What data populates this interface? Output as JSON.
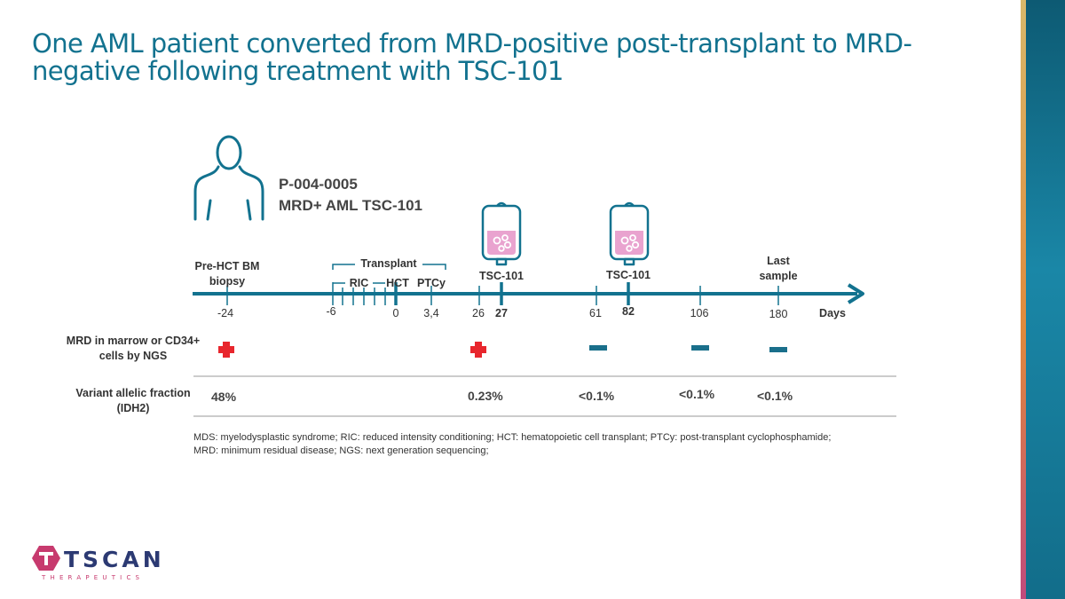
{
  "title": "One AML patient converted from MRD-positive post-transplant to MRD-negative following treatment with TSC-101",
  "patient": {
    "id": "P-004-0005",
    "description": "MRD+ AML TSC-101",
    "icon": "person-outline-icon"
  },
  "timeline": {
    "axis_unit_label": "Days",
    "events": {
      "pre_hct": "Pre-HCT BM biopsy",
      "transplant_group": "Transplant",
      "ric": "RIC",
      "hct": "HCT",
      "ptcy": "PTCy",
      "infusion_1": "TSC-101",
      "infusion_2": "TSC-101",
      "last_sample": "Last sample"
    },
    "day_labels": {
      "d_neg24": "-24",
      "d_neg6": "-6",
      "d0": "0",
      "d34": "3,4",
      "d26": "26",
      "d27": "27",
      "d61": "61",
      "d82": "82",
      "d106": "106",
      "d180": "180"
    },
    "infusion_icon": "iv-bag-icon"
  },
  "mrd_row": {
    "label": "MRD in marrow or CD34+ cells by NGS",
    "results": [
      "positive",
      "positive",
      "negative",
      "negative",
      "negative"
    ]
  },
  "vaf_row": {
    "label": "Variant allelic fraction (IDH2)",
    "values": [
      "48%",
      "0.23%",
      "<0.1%",
      "<0.1%",
      "<0.1%"
    ]
  },
  "footnote": {
    "line1": "MDS: myelodysplastic syndrome; RIC: reduced intensity conditioning; HCT: hematopoietic cell transplant; PTCy: post-transplant cyclophosphamide;",
    "line2": "MRD: minimum residual disease; NGS: next generation sequencing;"
  },
  "logo": {
    "name": "TSCAN",
    "tagline": "THERAPEUTICS"
  },
  "colors": {
    "teal": "#12728f",
    "positive_red": "#e8262d",
    "negative_teal": "#1a6f8b",
    "bag_pink": "#e9a3cf",
    "logo_navy": "#2c3a73",
    "logo_magenta": "#c73a6e"
  }
}
